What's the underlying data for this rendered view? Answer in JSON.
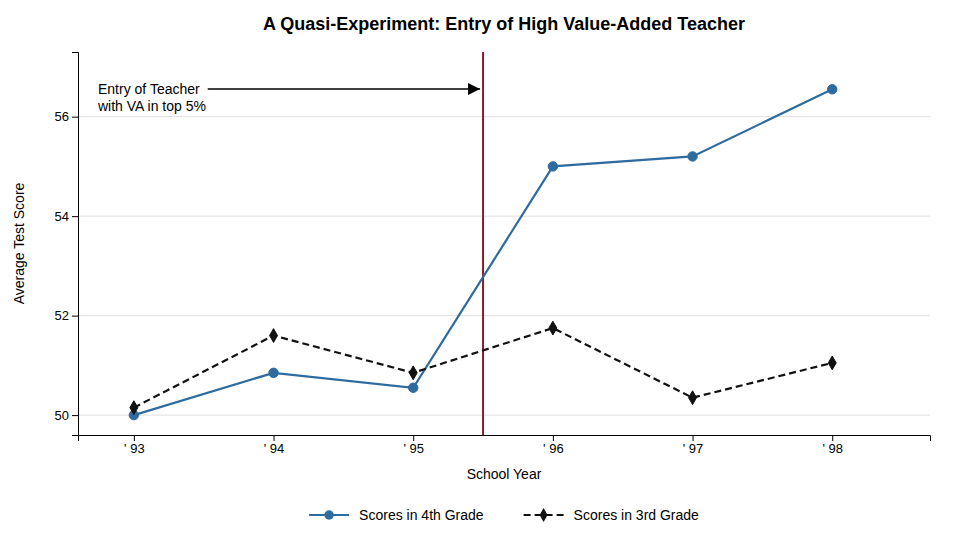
{
  "chart_data": {
    "type": "line",
    "title": "A Quasi-Experiment: Entry of High Value-Added Teacher",
    "x_label": "School Year",
    "y_label": "Average Test Score",
    "x": [
      1993,
      1994,
      1995,
      1996,
      1997,
      1998
    ],
    "series": [
      {
        "name": "Scores in 4th Grade",
        "color": "#2e6b9e",
        "marker": "circle",
        "line_style": "solid",
        "values": [
          50.0,
          50.85,
          50.55,
          55.0,
          55.2,
          56.55
        ]
      },
      {
        "name": "Scores in 3rd Grade",
        "color": "#111111",
        "marker": "diamond",
        "line_style": "dashed",
        "values": [
          50.15,
          51.6,
          50.85,
          51.75,
          50.35,
          51.05
        ]
      }
    ],
    "xlim": [
      1992.6,
      1998.7
    ],
    "xticks": [
      {
        "value": 1993,
        "label": "' 93"
      },
      {
        "value": 1994,
        "label": "' 94"
      },
      {
        "value": 1995,
        "label": "' 95"
      },
      {
        "value": 1996,
        "label": "' 96"
      },
      {
        "value": 1997,
        "label": "' 97"
      },
      {
        "value": 1998,
        "label": "' 98"
      }
    ],
    "ylim": [
      49.6,
      57.3
    ],
    "yticks": [
      50,
      52,
      54,
      56
    ],
    "vlines": [
      {
        "value": 1995.5,
        "color": "#8b1a2a"
      }
    ],
    "annotations": [
      {
        "text": "Entry of Teacher\nwith VA in top 5%"
      }
    ],
    "grid": true,
    "legend": "bottom"
  }
}
